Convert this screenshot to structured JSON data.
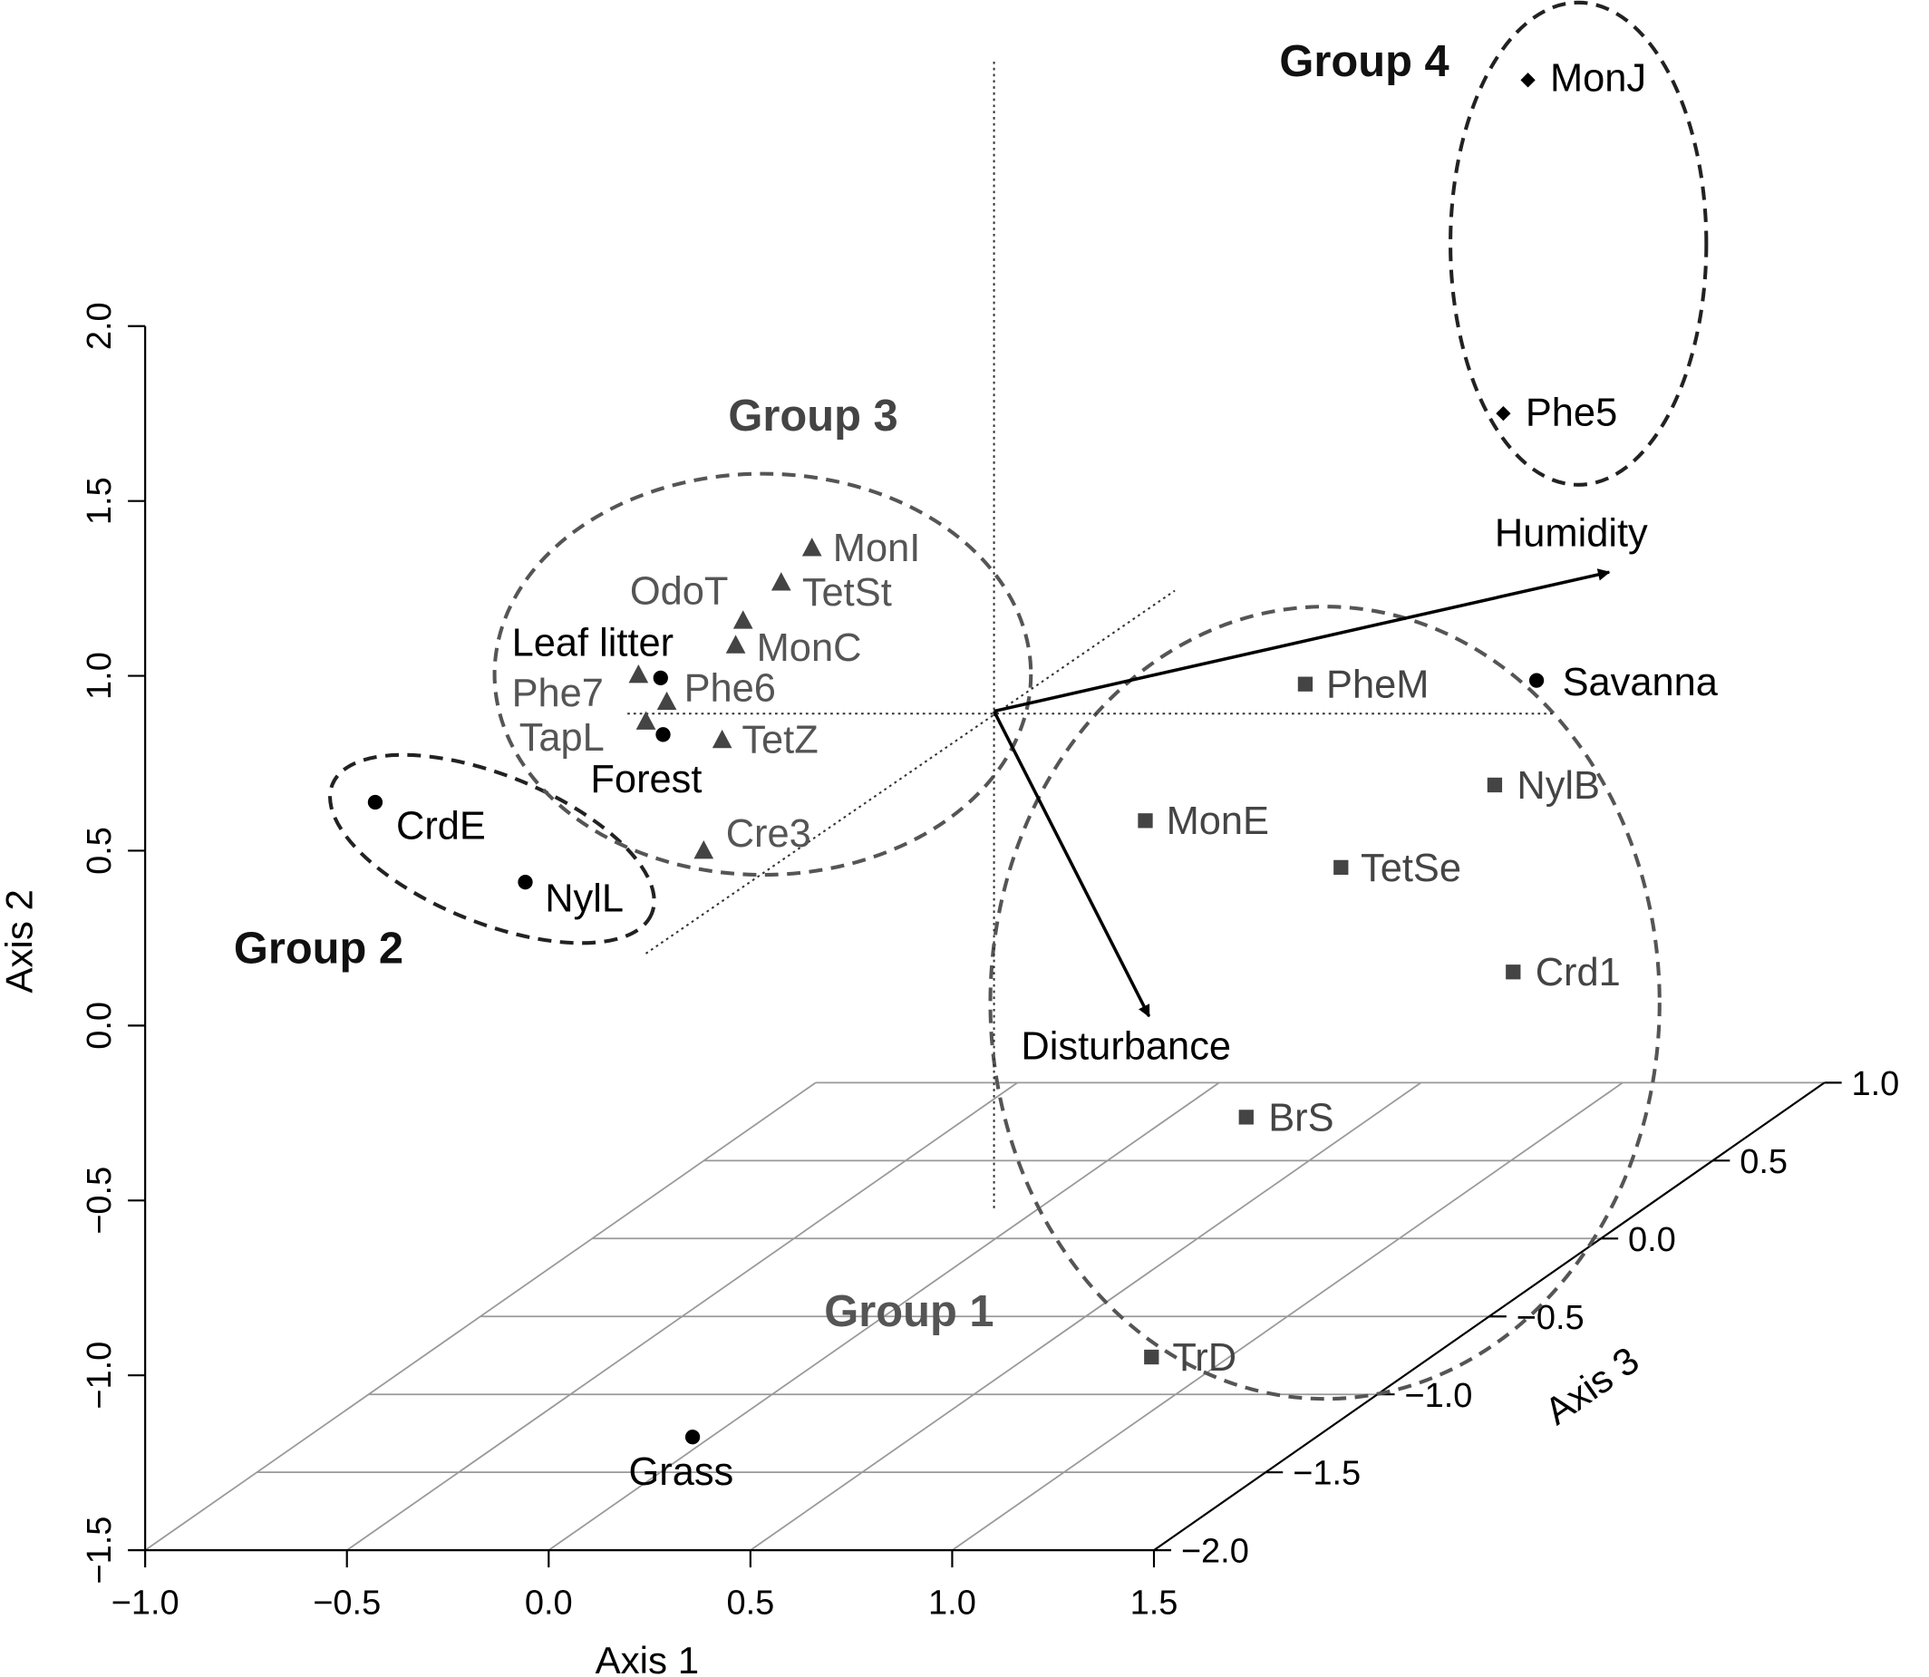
{
  "chart_data": {
    "type": "scatter3d",
    "axes": {
      "x": {
        "label": "Axis 1",
        "range": [
          -1.0,
          1.5
        ],
        "ticks": [
          "−1.0",
          "−0.5",
          "0.0",
          "0.5",
          "1.0",
          "1.5"
        ]
      },
      "y": {
        "label": "Axis 2",
        "range": [
          -1.5,
          2.0
        ],
        "ticks": [
          "−1.5",
          "−1.0",
          "−0.5",
          "0.0",
          "0.5",
          "1.0",
          "1.5",
          "2.0"
        ]
      },
      "z": {
        "label": "Axis 3",
        "range": [
          -2.0,
          1.0
        ],
        "ticks": [
          "−2.0",
          "−1.5",
          "−1.0",
          "−0.5",
          "0.0",
          "0.5",
          "1.0"
        ]
      }
    },
    "groups": [
      {
        "name": "Group 1",
        "marker": "square",
        "color": "#444444",
        "points": [
          {
            "label": "PheM",
            "x": 1.1,
            "y": 1.3,
            "z": -0.2
          },
          {
            "label": "NylB",
            "x": 1.2,
            "y": 1.35,
            "z": -0.55
          },
          {
            "label": "MonE",
            "x": 0.6,
            "y": 1.25,
            "z": -0.6
          },
          {
            "label": "TetSe",
            "x": 0.9,
            "y": 1.2,
            "z": -0.75
          },
          {
            "label": "Crd1",
            "x": 1.2,
            "y": 1.0,
            "z": -0.9
          },
          {
            "label": "BrS",
            "x": 1.0,
            "y": -0.3,
            "z": 0.4
          },
          {
            "label": "TrD",
            "x": 0.9,
            "y": -0.7,
            "z": -0.75
          }
        ]
      },
      {
        "name": "Group 2",
        "marker": "circle",
        "color": "#000000",
        "points": [
          {
            "label": "CrdE",
            "x": -0.4,
            "y": 0.8,
            "z": -0.7
          },
          {
            "label": "NylL",
            "x": -0.2,
            "y": 0.6,
            "z": -0.8
          }
        ]
      },
      {
        "name": "Group 3",
        "marker": "triangle",
        "color": "#444444",
        "points": [
          {
            "label": "MonI",
            "x": 0.3,
            "y": 1.7,
            "z": -0.3
          },
          {
            "label": "TetSt",
            "x": 0.3,
            "y": 1.6,
            "z": -0.2
          },
          {
            "label": "OdoT",
            "x": 0.3,
            "y": 1.55,
            "z": -0.4
          },
          {
            "label": "MonC",
            "x": 0.25,
            "y": 1.45,
            "z": -0.35
          },
          {
            "label": "Phe7",
            "x": 0.15,
            "y": 1.35,
            "z": -0.4
          },
          {
            "label": "Phe6",
            "x": 0.15,
            "y": 1.3,
            "z": -0.3
          },
          {
            "label": "TapL",
            "x": 0.15,
            "y": 1.2,
            "z": -0.35
          },
          {
            "label": "TetZ",
            "x": 0.25,
            "y": 1.15,
            "z": -0.3
          },
          {
            "label": "Cre3",
            "x": 0.2,
            "y": 0.8,
            "z": -0.6
          }
        ]
      },
      {
        "name": "Group 4",
        "marker": "diamond",
        "color": "#000000",
        "points": [
          {
            "label": "MonJ",
            "x": 1.5,
            "y": 2.7,
            "z": 0.9
          },
          {
            "label": "Phe5",
            "x": 1.45,
            "y": 2.2,
            "z": 0.8
          }
        ]
      }
    ],
    "environment_points": [
      {
        "label": "Leaf litter",
        "x": 0.15,
        "y": 1.35,
        "z": -0.35
      },
      {
        "label": "Forest",
        "x": 0.15,
        "y": 1.2,
        "z": -0.35
      },
      {
        "label": "Savanna",
        "x": 1.4,
        "y": 1.25,
        "z": -0.1
      },
      {
        "label": "Grass",
        "x": 0.35,
        "y": -0.95,
        "z": -1.5
      }
    ],
    "vectors": [
      {
        "label": "Humidity"
      },
      {
        "label": "Disturbance"
      }
    ],
    "grid": "xz-plane"
  }
}
